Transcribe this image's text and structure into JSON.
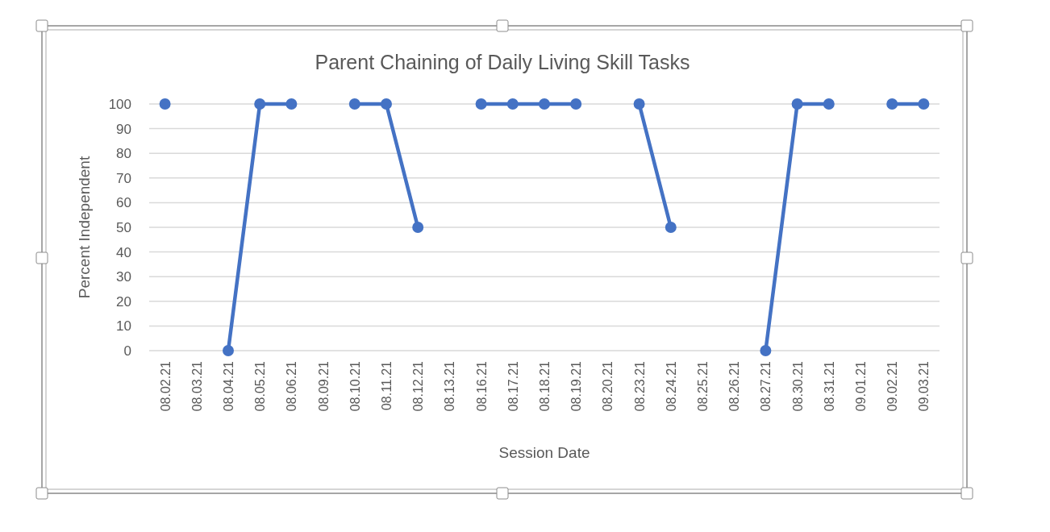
{
  "chart_data": {
    "type": "line",
    "title": "Parent Chaining of Daily Living Skill Tasks",
    "xlabel": "Session Date",
    "ylabel": "Percent Independent",
    "categories": [
      "08.02.21",
      "08.03.21",
      "08.04.21",
      "08.05.21",
      "08.06.21",
      "08.09.21",
      "08.10.21",
      "08.11.21",
      "08.12.21",
      "08.13.21",
      "08.16.21",
      "08.17.21",
      "08.18.21",
      "08.19.21",
      "08.20.21",
      "08.23.21",
      "08.24.21",
      "08.25.21",
      "08.26.21",
      "08.27.21",
      "08.30.21",
      "08.31.21",
      "09.01.21",
      "09.02.21",
      "09.03.21"
    ],
    "series": [
      {
        "color": "#4472c4",
        "values": [
          100,
          null,
          0,
          100,
          100,
          null,
          100,
          100,
          50,
          null,
          100,
          100,
          100,
          100,
          null,
          100,
          50,
          null,
          null,
          0,
          100,
          100,
          null,
          100,
          100
        ]
      }
    ],
    "ylim": [
      0,
      100
    ],
    "yticks": [
      0,
      10,
      20,
      30,
      40,
      50,
      60,
      70,
      80,
      90,
      100
    ],
    "grid": "y",
    "marker": "circle",
    "line_style": "solid"
  }
}
